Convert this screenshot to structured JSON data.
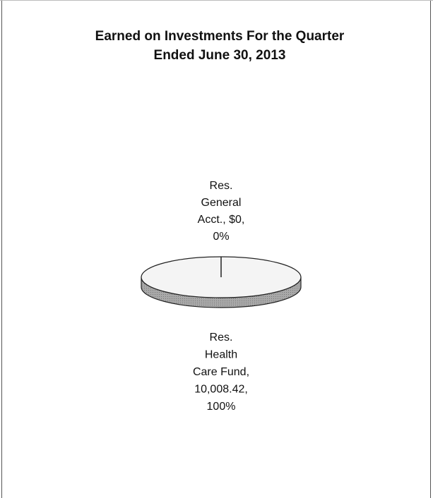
{
  "chart_data": {
    "type": "pie3d",
    "title": "Earned on Investments For the Quarter Ended June 30, 2013",
    "categories": [
      "Res. General Acct.",
      "Res. Health Care Fund"
    ],
    "values": [
      0,
      10008.42
    ],
    "value_labels": [
      "Res. General Acct., $0, 0%",
      "Res. Health Care Fund, 10,008.42, 100%"
    ],
    "colors": [
      "#f4f4f4",
      "#f4f4f4"
    ],
    "side_color": "#a8a8a8"
  }
}
